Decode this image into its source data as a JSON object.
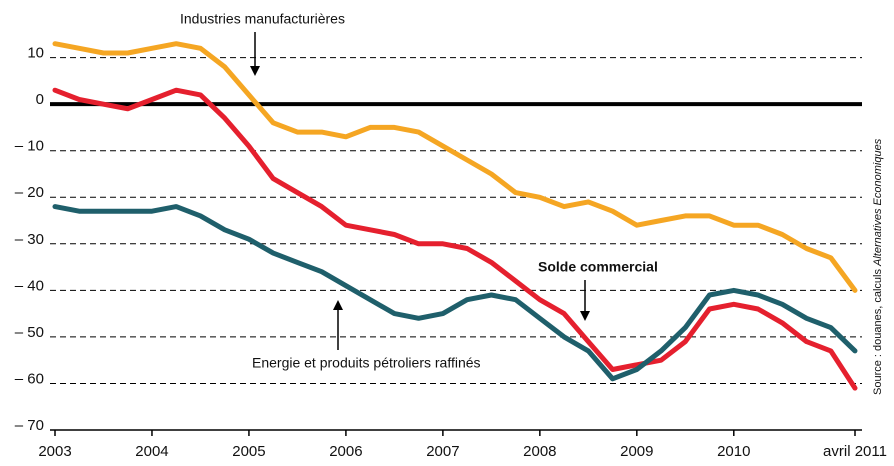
{
  "chart_data": {
    "type": "line",
    "x": [
      2003,
      2003.25,
      2003.5,
      2003.75,
      2004,
      2004.25,
      2004.5,
      2004.75,
      2005,
      2005.25,
      2005.5,
      2005.75,
      2006,
      2006.25,
      2006.5,
      2006.75,
      2007,
      2007.25,
      2007.5,
      2007.75,
      2008,
      2008.25,
      2008.5,
      2008.75,
      2009,
      2009.25,
      2009.5,
      2009.75,
      2010,
      2010.25,
      2010.5,
      2010.75,
      2011,
      2011.25
    ],
    "series": [
      {
        "name": "Industries manufacturières",
        "color": "#f5a623",
        "values": [
          13,
          12,
          11,
          11,
          12,
          13,
          12,
          8,
          2,
          -4,
          -6,
          -6,
          -7,
          -5,
          -5,
          -6,
          -9,
          -12,
          -15,
          -19,
          -20,
          -22,
          -21,
          -23,
          -26,
          -25,
          -24,
          -24,
          -26,
          -26,
          -28,
          -31,
          -33,
          -40
        ]
      },
      {
        "name": "Solde commercial",
        "color": "#e5202e",
        "values": [
          3,
          1,
          0,
          -1,
          1,
          3,
          2,
          -3,
          -9,
          -16,
          -19,
          -22,
          -26,
          -27,
          -28,
          -30,
          -30,
          -31,
          -34,
          -38,
          -42,
          -45,
          -51,
          -57,
          -56,
          -55,
          -51,
          -44,
          -43,
          -44,
          -47,
          -51,
          -53,
          -61
        ]
      },
      {
        "name": "Energie et produits pétroliers raffinés",
        "color": "#1f5f6b",
        "values": [
          -22,
          -23,
          -23,
          -23,
          -23,
          -22,
          -24,
          -27,
          -29,
          -32,
          -34,
          -36,
          -39,
          -42,
          -45,
          -46,
          -45,
          -42,
          -41,
          -42,
          -46,
          -50,
          -53,
          -59,
          -57,
          -53,
          -48,
          -41,
          -40,
          -41,
          -43,
          -46,
          -48,
          -53
        ]
      }
    ],
    "xlim": [
      2003,
      2011.25
    ],
    "xticks": [
      2003,
      2004,
      2005,
      2006,
      2007,
      2008,
      2009,
      2010,
      {
        "value": 2011.25,
        "label": "avril 2011"
      }
    ],
    "ylim": [
      -70,
      14
    ],
    "yticks": [
      10,
      0,
      {
        "value": -10,
        "label": "– 10"
      },
      {
        "value": -20,
        "label": "– 20"
      },
      {
        "value": -30,
        "label": "– 30"
      },
      {
        "value": -40,
        "label": "– 40"
      },
      {
        "value": -50,
        "label": "– 50"
      },
      {
        "value": -60,
        "label": "– 60"
      },
      {
        "value": -70,
        "label": "– 70"
      }
    ],
    "grid": true,
    "source": {
      "text": "Source : douanes, calculs ",
      "italic": "Alternatives Economiques"
    }
  }
}
